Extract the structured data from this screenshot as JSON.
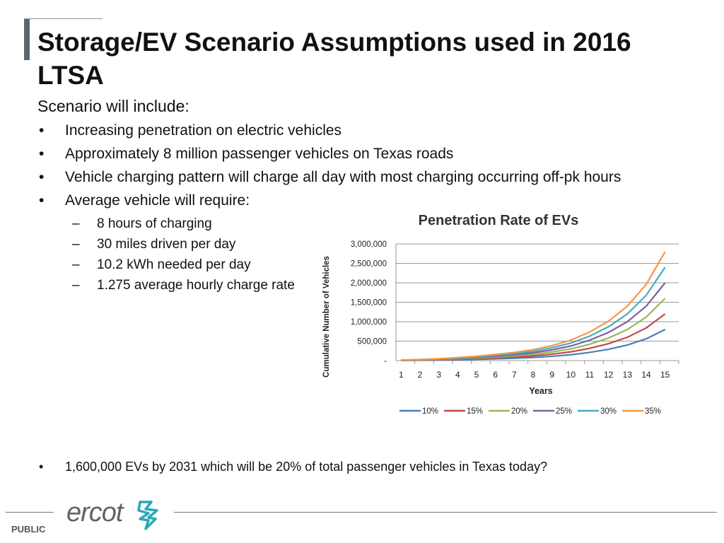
{
  "slide": {
    "title": "Storage/EV Scenario Assumptions used in 2016 LTSA",
    "intro": "Scenario will include:",
    "bullets": [
      "Increasing penetration on electric vehicles",
      "Approximately 8 million passenger vehicles on Texas roads",
      "Vehicle charging pattern will charge all day with most charging occurring off-pk hours",
      "Average vehicle will require:"
    ],
    "sub_bullets": [
      "8 hours of charging",
      "30 miles driven per day",
      "10.2 kWh needed per day",
      "1.275 average hourly charge rate"
    ],
    "final_bullet": "1,600,000  EVs by 2031 which will be 20% of total passenger vehicles in Texas today?",
    "bullet_glyph": "•",
    "dash_glyph": "–"
  },
  "footer": {
    "label": "PUBLIC",
    "logo_text": "ercot"
  },
  "colors": {
    "accent": "#5b6770",
    "logo_gray": "#5f6368",
    "logo_teal": "#26a9b8"
  },
  "chart_data": {
    "type": "line",
    "title": "Penetration Rate of EVs",
    "xlabel": "Years",
    "ylabel": "Cumulative Number of Vehicles",
    "x": [
      1,
      2,
      3,
      4,
      5,
      6,
      7,
      8,
      9,
      10,
      11,
      12,
      13,
      14,
      15
    ],
    "ylim": [
      0,
      3000000
    ],
    "yticks": [
      "-",
      "500,000",
      "1,000,000",
      "1,500,000",
      "2,000,000",
      "2,500,000",
      "3,000,000"
    ],
    "grid": true,
    "legend_position": "bottom",
    "series": [
      {
        "name": "10%",
        "color": "#4a7ebb",
        "values": [
          4000,
          8000,
          14000,
          22000,
          32000,
          45000,
          60000,
          80000,
          110000,
          150000,
          210000,
          290000,
          400000,
          560000,
          800000
        ]
      },
      {
        "name": "15%",
        "color": "#be4b48",
        "values": [
          6000,
          12000,
          21000,
          33000,
          48000,
          67500,
          90000,
          120000,
          165000,
          225000,
          315000,
          435000,
          600000,
          840000,
          1200000
        ]
      },
      {
        "name": "20%",
        "color": "#98b954",
        "values": [
          8000,
          16000,
          28000,
          44000,
          64000,
          90000,
          120000,
          160000,
          220000,
          300000,
          420000,
          580000,
          800000,
          1120000,
          1600000
        ]
      },
      {
        "name": "25%",
        "color": "#7d60a0",
        "values": [
          10000,
          20000,
          35000,
          55000,
          80000,
          112500,
          150000,
          200000,
          275000,
          375000,
          525000,
          725000,
          1000000,
          1400000,
          2000000
        ]
      },
      {
        "name": "30%",
        "color": "#46aac5",
        "values": [
          12000,
          24000,
          42000,
          66000,
          96000,
          135000,
          180000,
          240000,
          330000,
          450000,
          630000,
          870000,
          1200000,
          1680000,
          2400000
        ]
      },
      {
        "name": "35%",
        "color": "#f79646",
        "values": [
          14000,
          28000,
          49000,
          77000,
          112000,
          157500,
          210000,
          280000,
          385000,
          525000,
          735000,
          1015000,
          1400000,
          1960000,
          2800000
        ]
      }
    ]
  }
}
